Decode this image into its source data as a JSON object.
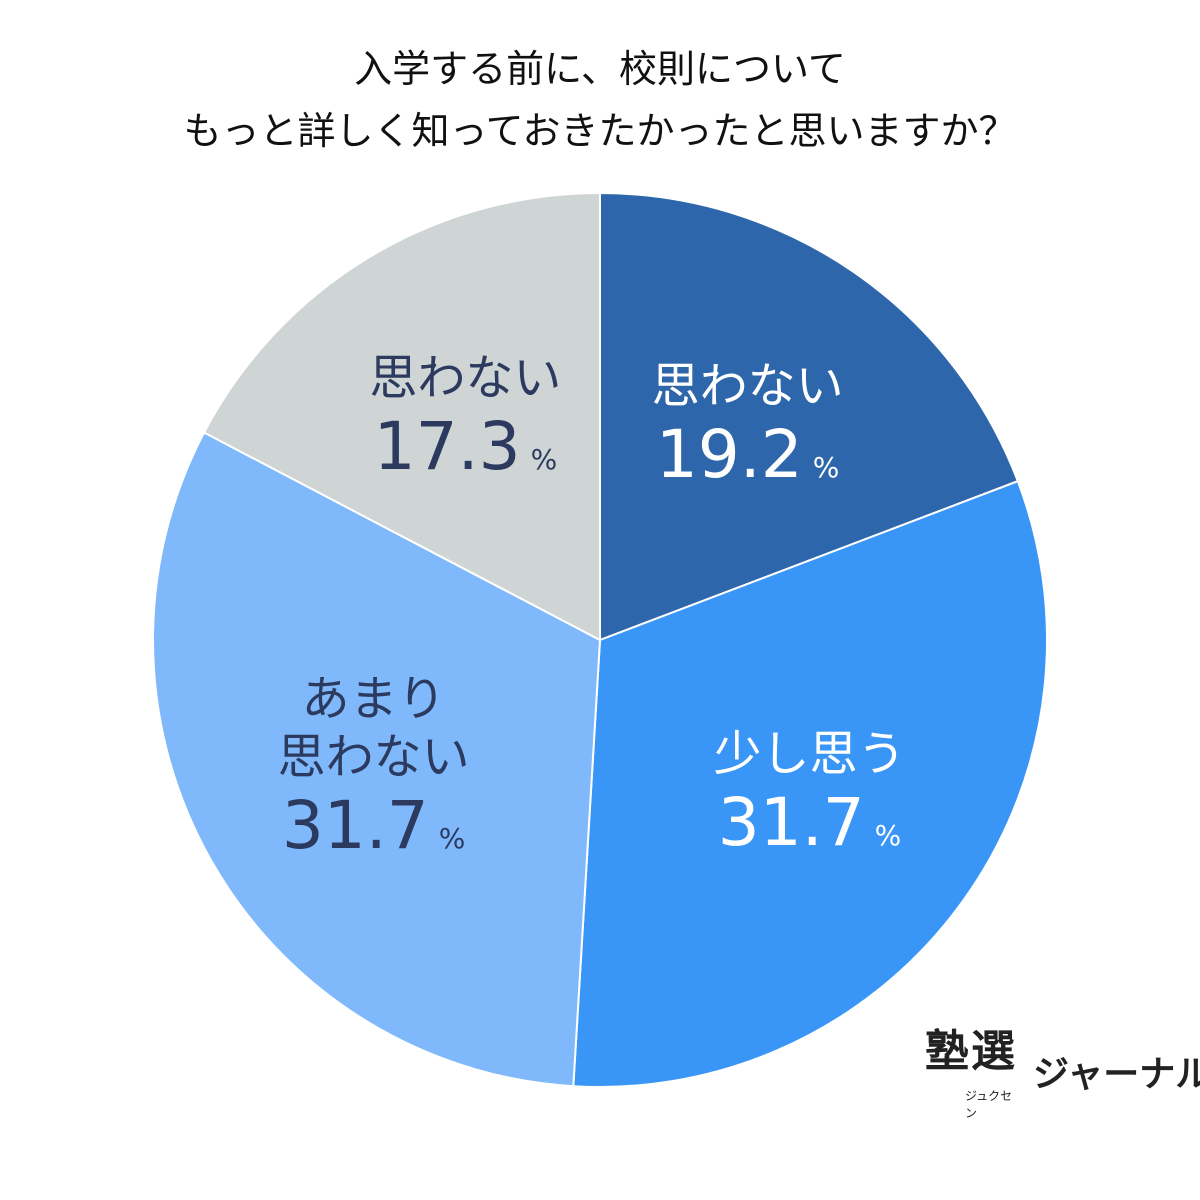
{
  "chart_data": {
    "type": "pie",
    "title": [
      "入学する前に、校則について",
      "もっと詳しく知っておきたかったと思いますか？"
    ],
    "categories": [
      "思わない",
      "少し思う",
      "あまり\n思わない",
      "思わない"
    ],
    "values": [
      19.2,
      31.7,
      31.7,
      17.3
    ],
    "unit": "%",
    "colors": [
      "#2d66aa",
      "#3a96f6",
      "#80b9fb",
      "#cfd4d5"
    ],
    "label_colors": [
      "#ffffff",
      "#ffffff",
      "#2b3a5e",
      "#2b3a5e"
    ]
  },
  "logo": {
    "main": "塾選",
    "reading": "ジュクセン",
    "sub": "ジャーナル"
  }
}
